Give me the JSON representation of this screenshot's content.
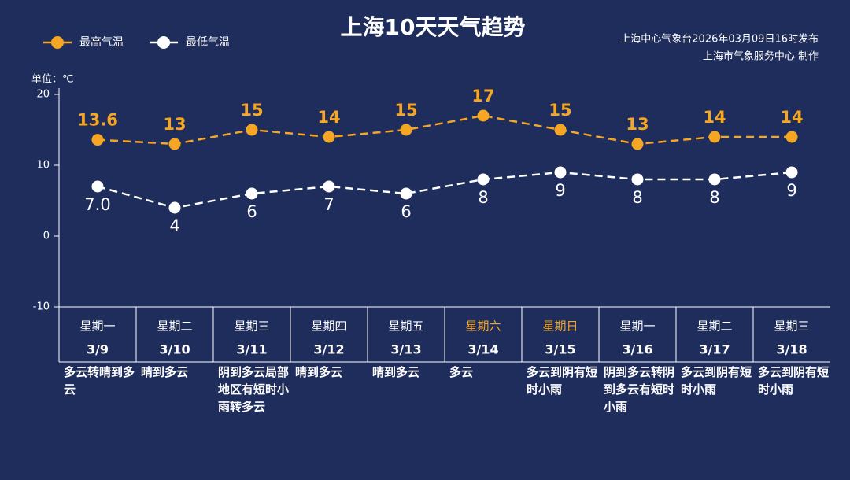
{
  "chart_data": {
    "type": "line",
    "title": "上海10天天气趋势",
    "source": [
      "上海中心气象台2026年03月09日16时发布",
      "上海市气象服务中心  制作"
    ],
    "y_label": "单位：℃",
    "categories": [
      "3/9",
      "3/10",
      "3/11",
      "3/12",
      "3/13",
      "3/14",
      "3/15",
      "3/16",
      "3/17",
      "3/18"
    ],
    "weekdays": [
      "星期一",
      "星期二",
      "星期三",
      "星期四",
      "星期五",
      "星期六",
      "星期日",
      "星期一",
      "星期二",
      "星期三"
    ],
    "weekday_colors": [
      "#ffffff",
      "#ffffff",
      "#ffffff",
      "#ffffff",
      "#ffffff",
      "#f5a623",
      "#f5a623",
      "#ffffff",
      "#ffffff",
      "#ffffff"
    ],
    "weather": [
      "多云转晴到多云",
      "晴到多云",
      "阴到多云局部地区有短时小雨转多云",
      "晴到多云",
      "晴到多云",
      "多云",
      "多云到阴有短时小雨",
      "阴到多云转阴到多云有短时小雨",
      "多云到阴有短时小雨",
      "多云到阴有短时小雨"
    ],
    "series": [
      {
        "name": "最高气温",
        "color": "#f5a623",
        "values": [
          13.6,
          13,
          15,
          14,
          15,
          17,
          15,
          13,
          14,
          14
        ],
        "value_labels": [
          "13.6",
          "13",
          "15",
          "14",
          "15",
          "17",
          "15",
          "13",
          "14",
          "14"
        ]
      },
      {
        "name": "最低气温",
        "color": "#ffffff",
        "values": [
          7.0,
          4,
          6,
          7,
          6,
          8,
          9,
          8,
          8,
          9
        ],
        "value_labels": [
          "7.0",
          "4",
          "6",
          "7",
          "6",
          "8",
          "9",
          "8",
          "8",
          "9"
        ]
      }
    ],
    "ylim": [
      -10,
      20
    ],
    "yticks": [
      -10,
      0,
      10,
      20
    ],
    "grid": false,
    "legend": "top-left"
  }
}
